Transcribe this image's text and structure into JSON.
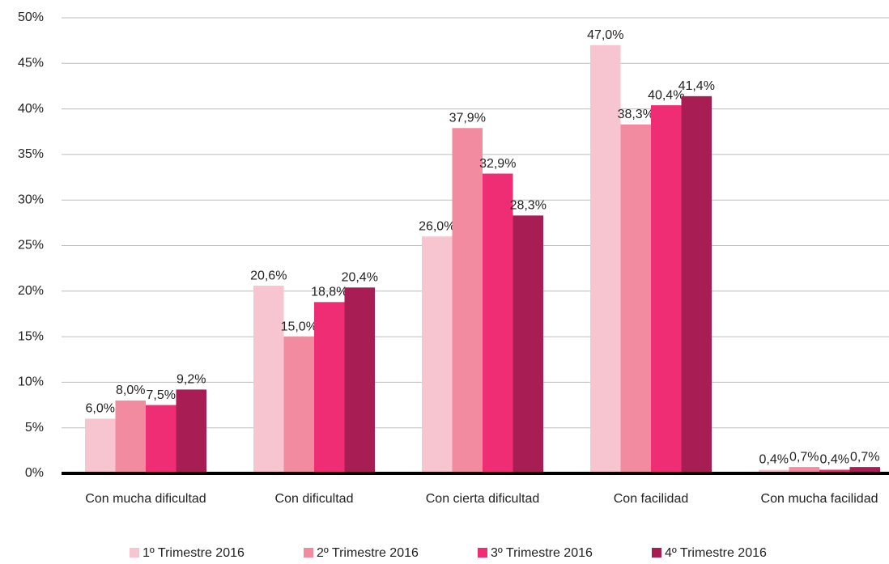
{
  "chart_data": {
    "type": "bar",
    "categories": [
      "Con mucha dificultad",
      "Con dificultad",
      "Con cierta dificultad",
      "Con facilidad",
      "Con mucha facilidad"
    ],
    "series": [
      {
        "name": "1º Trimestre 2016",
        "color": "#f7c5cf",
        "values": [
          6.0,
          20.6,
          26.0,
          47.0,
          0.4
        ],
        "value_labels": [
          "6,0%",
          "20,6%",
          "26,0%",
          "47,0%",
          "0,4%"
        ]
      },
      {
        "name": "2º Trimestre 2016",
        "color": "#f28ba0",
        "values": [
          8.0,
          15.0,
          37.9,
          38.3,
          0.7
        ],
        "value_labels": [
          "8,0%",
          "15,0%",
          "37,9%",
          "38,3%",
          "0,7%"
        ]
      },
      {
        "name": "3º Trimestre 2016",
        "color": "#ee2d74",
        "values": [
          7.5,
          18.8,
          32.9,
          40.4,
          0.4
        ],
        "value_labels": [
          "7,5%",
          "18,8%",
          "32,9%",
          "40,4%",
          "0,4%"
        ]
      },
      {
        "name": "4º Trimestre 2016",
        "color": "#a91d55",
        "values": [
          9.2,
          20.4,
          28.3,
          41.4,
          0.7
        ],
        "value_labels": [
          "9,2%",
          "20,4%",
          "28,3%",
          "41,4%",
          "0,7%"
        ]
      }
    ],
    "ylim": [
      0,
      50
    ],
    "yticks": [
      {
        "value": 0,
        "label": "0%"
      },
      {
        "value": 5,
        "label": "5%"
      },
      {
        "value": 10,
        "label": "10%"
      },
      {
        "value": 15,
        "label": "15%"
      },
      {
        "value": 20,
        "label": "20%"
      },
      {
        "value": 25,
        "label": "25%"
      },
      {
        "value": 30,
        "label": "30%"
      },
      {
        "value": 35,
        "label": "35%"
      },
      {
        "value": 40,
        "label": "40%"
      },
      {
        "value": 45,
        "label": "45%"
      },
      {
        "value": 50,
        "label": "50%"
      }
    ],
    "grid": true,
    "legend": "bottom"
  }
}
